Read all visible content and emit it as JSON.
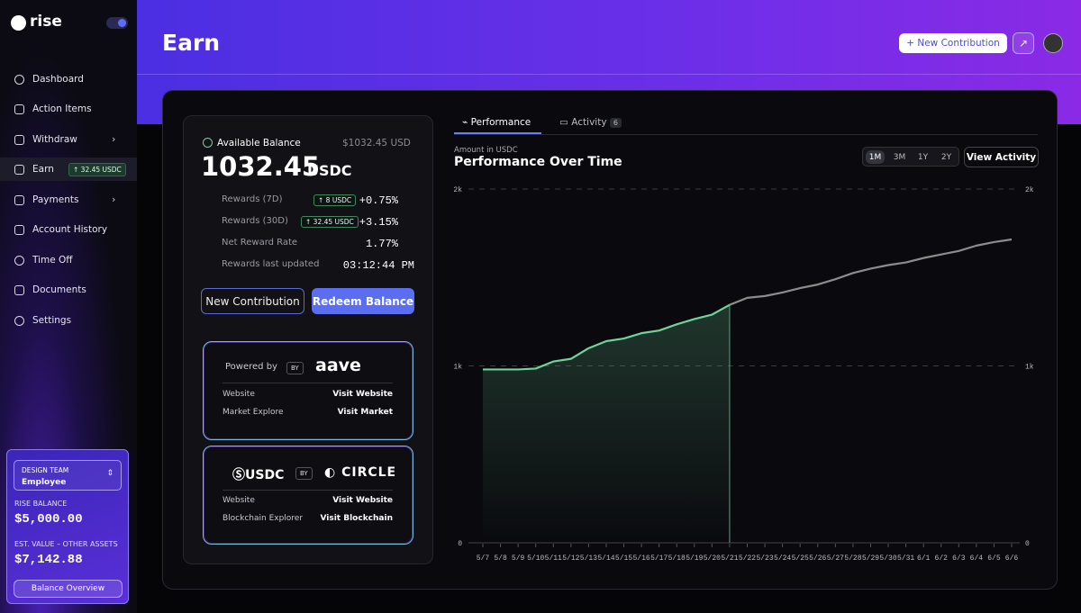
{
  "sidebar": {
    "brand": "rise",
    "nav": [
      "Dashboard",
      "Action Items",
      "Withdraw",
      "Earn",
      "Payments",
      "Account History",
      "Time Off",
      "Documents",
      "Settings"
    ],
    "earn_badge": "32.45 USDC",
    "team": {
      "label": "DESIGN TEAM",
      "role": "Employee"
    },
    "rise_balance": {
      "label": "RISE BALANCE",
      "value": "$5,000.00"
    },
    "other_assets": {
      "label": "EST. VALUE – OTHER ASSETS",
      "value": "$7,142.88"
    },
    "button": "Balance Overview"
  },
  "header": {
    "title": "Earn",
    "button": "New Contribution"
  },
  "balance": {
    "label": "Available Balance",
    "usd": "$1032.45 USD",
    "amount": "1032.45",
    "unit": "USDC",
    "rows": [
      {
        "label": "Rewards (7D)",
        "badge": "8 USDC",
        "value": "+0.75%"
      },
      {
        "label": "Rewards (30D)",
        "badge": "32.45 USDC",
        "value": "+3.15%"
      },
      {
        "label": "Net Reward Rate",
        "value": "1.77%"
      },
      {
        "label": "Rewards last updated",
        "value": "03:12:44 PM"
      }
    ],
    "buttons": [
      "New Contribution",
      "Redeem Balance"
    ]
  },
  "partners": [
    {
      "prefix": "Powered by",
      "by": "BY",
      "logo": "aave",
      "rows": [
        {
          "label": "Website",
          "link": "Visit Website"
        },
        {
          "label": "Market Explore",
          "link": "Visit Market"
        }
      ]
    },
    {
      "prefix": "USDC",
      "by": "BY",
      "logo": "CIRCLE",
      "rows": [
        {
          "label": "Website",
          "link": "Visit Website"
        },
        {
          "label": "Blockchain Explorer",
          "link": "Visit Blockchain"
        }
      ]
    }
  ],
  "tabs": [
    {
      "label": "Performance"
    },
    {
      "label": "Activity",
      "count": 6
    }
  ],
  "chart_header": {
    "subtitle": "Amount in USDC",
    "title": "Performance Over Time",
    "ranges": [
      "1M",
      "3M",
      "1Y",
      "2Y"
    ],
    "button": "View Activity"
  },
  "chart_data": {
    "type": "line",
    "categories": [
      "5/7",
      "5/8",
      "5/9",
      "5/10",
      "5/11",
      "5/12",
      "5/13",
      "5/14",
      "5/15",
      "5/16",
      "5/17",
      "5/18",
      "5/19",
      "5/20",
      "5/21",
      "5/22",
      "5/23",
      "5/24",
      "5/25",
      "5/26",
      "5/27",
      "5/28",
      "5/29",
      "5/30",
      "5/31",
      "6/1",
      "6/2",
      "6/3",
      "6/4",
      "6/5",
      "6/6"
    ],
    "values": [
      980,
      980,
      980,
      985,
      1025,
      1040,
      1100,
      1140,
      1155,
      1185,
      1200,
      1235,
      1265,
      1290,
      1345,
      1385,
      1395,
      1415,
      1440,
      1460,
      1490,
      1525,
      1550,
      1570,
      1585,
      1610,
      1630,
      1650,
      1680,
      1700,
      1715
    ],
    "cursor": "5/21",
    "color": "#6fd39a",
    "future_color": "#8c8c8c",
    "ylim": [
      0,
      2000
    ],
    "yticks": [
      0,
      {
        "value": 1000,
        "label": "1k"
      },
      {
        "value": 2000,
        "label": "2k"
      }
    ],
    "grid": true
  }
}
